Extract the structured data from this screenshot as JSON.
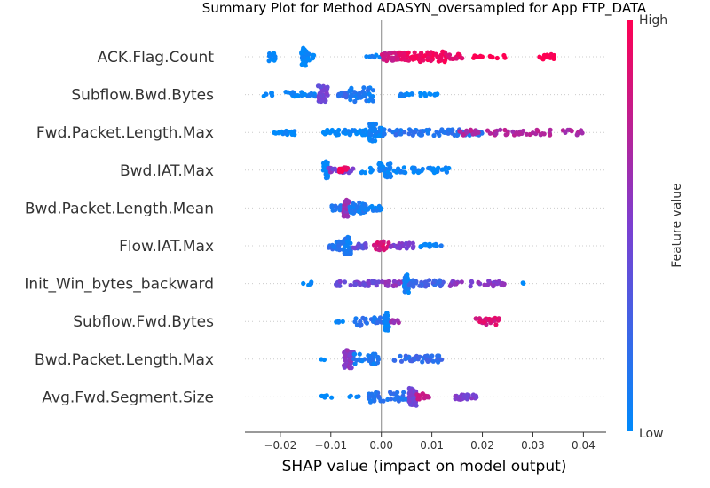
{
  "chart_data": {
    "type": "scatter",
    "title": "Summary Plot for Method ADASYN_oversampled for App FTP_DATA",
    "xlabel": "SHAP value (impact on model output)",
    "ylabel": "",
    "xlim": [
      -0.027,
      0.0445
    ],
    "xticks": [
      -0.02,
      -0.01,
      0.0,
      0.01,
      0.02,
      0.03,
      0.04
    ],
    "xtick_labels": [
      "−0.02",
      "−0.01",
      "0.00",
      "0.01",
      "0.02",
      "0.03",
      "0.04"
    ],
    "colorbar": {
      "label": "Feature value",
      "high": "High",
      "low": "Low",
      "low_color": "#008afb",
      "mid_color": "#7c3fd1",
      "high_color": "#ff0052"
    },
    "features": [
      {
        "name": "ACK.Flag.Count",
        "clusters": [
          {
            "x": [
              -0.0225,
              -0.021
            ],
            "v": 0.0,
            "n": 14,
            "spread": 0.6
          },
          {
            "x": [
              -0.0158,
              -0.0148
            ],
            "v": 0.0,
            "n": 40,
            "spread": 1.0
          },
          {
            "x": [
              -0.015,
              -0.013
            ],
            "v": 0.0,
            "n": 10,
            "spread": 0.4
          },
          {
            "x": [
              -0.0045,
              0.0
            ],
            "v": 0.05,
            "n": 6,
            "spread": 0.2
          },
          {
            "x": [
              0.0,
              0.0035
            ],
            "v": 0.8,
            "n": 26,
            "spread": 0.5
          },
          {
            "x": [
              0.0035,
              0.0075
            ],
            "v": 0.95,
            "n": 34,
            "spread": 0.5
          },
          {
            "x": [
              0.0075,
              0.013
            ],
            "v": 0.95,
            "n": 44,
            "spread": 0.6
          },
          {
            "x": [
              0.013,
              0.016
            ],
            "v": 0.9,
            "n": 14,
            "spread": 0.3
          },
          {
            "x": [
              0.0175,
              0.0205
            ],
            "v": 1.0,
            "n": 6,
            "spread": 0.15
          },
          {
            "x": [
              0.0215,
              0.0245
            ],
            "v": 1.0,
            "n": 6,
            "spread": 0.15
          },
          {
            "x": [
              0.031,
              0.0345
            ],
            "v": 1.0,
            "n": 14,
            "spread": 0.3
          }
        ]
      },
      {
        "name": "Subflow.Bwd.Bytes",
        "clusters": [
          {
            "x": [
              -0.0235,
              -0.0215
            ],
            "v": 0.0,
            "n": 6,
            "spread": 0.2
          },
          {
            "x": [
              -0.019,
              -0.0125
            ],
            "v": 0.05,
            "n": 24,
            "spread": 0.3
          },
          {
            "x": [
              -0.0125,
              -0.0105
            ],
            "v": 0.45,
            "n": 34,
            "spread": 1.0
          },
          {
            "x": [
              -0.0085,
              -0.0065
            ],
            "v": 0.2,
            "n": 12,
            "spread": 0.35
          },
          {
            "x": [
              -0.0065,
              -0.0015
            ],
            "v": 0.1,
            "n": 40,
            "spread": 0.8
          },
          {
            "x": [
              0.0035,
              0.0055
            ],
            "v": 0.05,
            "n": 8,
            "spread": 0.2
          },
          {
            "x": [
              0.0055,
              0.0115
            ],
            "v": 0.0,
            "n": 14,
            "spread": 0.2
          }
        ]
      },
      {
        "name": "Fwd.Packet.Length.Max",
        "clusters": [
          {
            "x": [
              -0.0215,
              -0.0205
            ],
            "v": 0.0,
            "n": 3,
            "spread": 0.1
          },
          {
            "x": [
              -0.0205,
              -0.017
            ],
            "v": 0.0,
            "n": 18,
            "spread": 0.3
          },
          {
            "x": [
              -0.0115,
              -0.002
            ],
            "v": 0.0,
            "n": 40,
            "spread": 0.3
          },
          {
            "x": [
              -0.0025,
              -0.001
            ],
            "v": 0.05,
            "n": 40,
            "spread": 1.0
          },
          {
            "x": [
              -0.001,
              0.0005
            ],
            "v": 0.05,
            "n": 20,
            "spread": 0.5
          },
          {
            "x": [
              0.0005,
              0.02
            ],
            "v": 0.15,
            "n": 70,
            "spread": 0.35
          },
          {
            "x": [
              0.015,
              0.0405
            ],
            "v": 0.7,
            "n": 60,
            "spread": 0.3
          }
        ]
      },
      {
        "name": "Bwd.IAT.Max",
        "clusters": [
          {
            "x": [
              -0.0115,
              -0.0105
            ],
            "v": 0.0,
            "n": 30,
            "spread": 1.0
          },
          {
            "x": [
              -0.0105,
              -0.0055
            ],
            "v": 0.5,
            "n": 30,
            "spread": 0.3
          },
          {
            "x": [
              -0.0085,
              -0.0065
            ],
            "v": 0.95,
            "n": 14,
            "spread": 0.3
          },
          {
            "x": [
              -0.004,
              -0.0015
            ],
            "v": 0.0,
            "n": 8,
            "spread": 0.3
          },
          {
            "x": [
              -0.0005,
              0.0025
            ],
            "v": 0.05,
            "n": 30,
            "spread": 0.8
          },
          {
            "x": [
              0.0025,
              0.0135
            ],
            "v": 0.05,
            "n": 40,
            "spread": 0.3
          }
        ]
      },
      {
        "name": "Bwd.Packet.Length.Mean",
        "clusters": [
          {
            "x": [
              -0.01,
              -0.0075
            ],
            "v": 0.1,
            "n": 14,
            "spread": 0.3
          },
          {
            "x": [
              -0.0075,
              -0.0065
            ],
            "v": 0.6,
            "n": 34,
            "spread": 1.0
          },
          {
            "x": [
              -0.0065,
              -0.003
            ],
            "v": 0.1,
            "n": 40,
            "spread": 0.6
          },
          {
            "x": [
              -0.003,
              0.0
            ],
            "v": 0.05,
            "n": 18,
            "spread": 0.3
          }
        ]
      },
      {
        "name": "Flow.IAT.Max",
        "clusters": [
          {
            "x": [
              -0.0105,
              -0.0075
            ],
            "v": 0.15,
            "n": 20,
            "spread": 0.5
          },
          {
            "x": [
              -0.0075,
              -0.006
            ],
            "v": 0.1,
            "n": 30,
            "spread": 1.0
          },
          {
            "x": [
              -0.006,
              -0.003
            ],
            "v": 0.4,
            "n": 14,
            "spread": 0.3
          },
          {
            "x": [
              -0.0015,
              0.0015
            ],
            "v": 0.85,
            "n": 24,
            "spread": 0.5
          },
          {
            "x": [
              0.0015,
              0.007
            ],
            "v": 0.5,
            "n": 20,
            "spread": 0.3
          },
          {
            "x": [
              0.007,
              0.012
            ],
            "v": 0.05,
            "n": 16,
            "spread": 0.2
          }
        ]
      },
      {
        "name": "Init_Win_bytes_backward",
        "clusters": [
          {
            "x": [
              -0.0155,
              -0.0135
            ],
            "v": 0.0,
            "n": 5,
            "spread": 0.2
          },
          {
            "x": [
              -0.009,
              -0.0005
            ],
            "v": 0.45,
            "n": 36,
            "spread": 0.3
          },
          {
            "x": [
              0.0,
              0.0045
            ],
            "v": 0.55,
            "n": 20,
            "spread": 0.3
          },
          {
            "x": [
              0.0045,
              0.0055
            ],
            "v": 0.05,
            "n": 40,
            "spread": 1.0
          },
          {
            "x": [
              0.0055,
              0.0125
            ],
            "v": 0.25,
            "n": 36,
            "spread": 0.4
          },
          {
            "x": [
              0.0125,
              0.0245
            ],
            "v": 0.55,
            "n": 34,
            "spread": 0.3
          },
          {
            "x": [
              0.0275,
              0.0285
            ],
            "v": 0.0,
            "n": 2,
            "spread": 0.1
          }
        ]
      },
      {
        "name": "Subflow.Fwd.Bytes",
        "clusters": [
          {
            "x": [
              -0.0095,
              -0.0075
            ],
            "v": 0.0,
            "n": 4,
            "spread": 0.1
          },
          {
            "x": [
              -0.0055,
              0.0005
            ],
            "v": 0.15,
            "n": 26,
            "spread": 0.5
          },
          {
            "x": [
              0.0005,
              0.0015
            ],
            "v": 0.05,
            "n": 30,
            "spread": 1.0
          },
          {
            "x": [
              0.0015,
              0.0035
            ],
            "v": 0.6,
            "n": 6,
            "spread": 0.2
          },
          {
            "x": [
              0.0185,
              0.0235
            ],
            "v": 0.85,
            "n": 30,
            "spread": 0.4
          }
        ]
      },
      {
        "name": "Bwd.Packet.Length.Max",
        "clusters": [
          {
            "x": [
              -0.012,
              -0.011
            ],
            "v": 0.0,
            "n": 2,
            "spread": 0.1
          },
          {
            "x": [
              -0.0075,
              -0.0055
            ],
            "v": 0.55,
            "n": 44,
            "spread": 1.0
          },
          {
            "x": [
              -0.0055,
              -0.0005
            ],
            "v": 0.1,
            "n": 30,
            "spread": 0.6
          },
          {
            "x": [
              0.0025,
              0.012
            ],
            "v": 0.2,
            "n": 40,
            "spread": 0.4
          }
        ]
      },
      {
        "name": "Avg.Fwd.Segment.Size",
        "clusters": [
          {
            "x": [
              -0.012,
              -0.0095
            ],
            "v": 0.0,
            "n": 6,
            "spread": 0.2
          },
          {
            "x": [
              -0.0065,
              -0.0045
            ],
            "v": 0.0,
            "n": 4,
            "spread": 0.2
          },
          {
            "x": [
              -0.0025,
              0.0055
            ],
            "v": 0.15,
            "n": 36,
            "spread": 0.6
          },
          {
            "x": [
              0.0055,
              0.007
            ],
            "v": 0.45,
            "n": 40,
            "spread": 1.0
          },
          {
            "x": [
              0.007,
              0.0095
            ],
            "v": 0.8,
            "n": 14,
            "spread": 0.4
          },
          {
            "x": [
              0.0145,
              0.019
            ],
            "v": 0.5,
            "n": 24,
            "spread": 0.3
          }
        ]
      }
    ]
  }
}
